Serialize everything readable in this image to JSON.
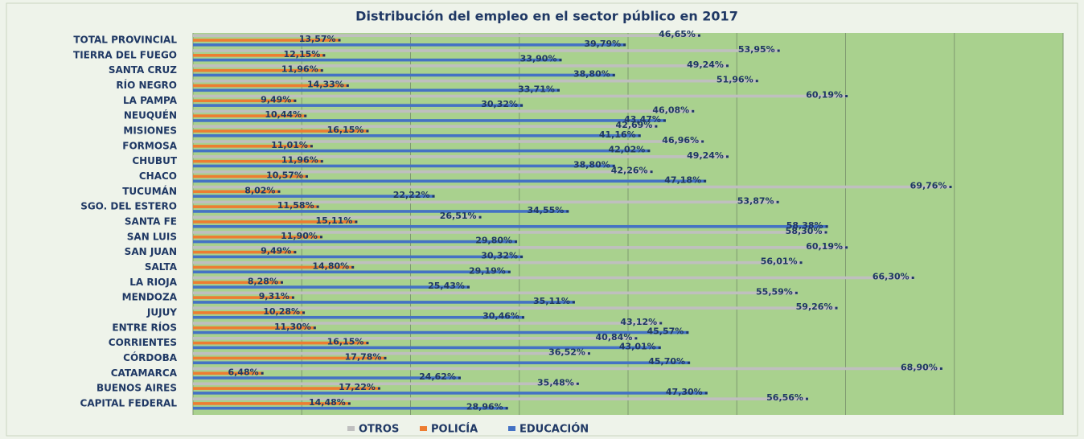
{
  "chart_data": {
    "type": "hbar",
    "title": "Distribución del empleo en el sector público en 2017",
    "categories": [
      "TOTAL PROVINCIAL",
      "TIERRA DEL FUEGO",
      "SANTA CRUZ",
      "RÍO NEGRO",
      "LA PAMPA",
      "NEUQUÉN",
      "MISIONES",
      "FORMOSA",
      "CHUBUT",
      "CHACO",
      "TUCUMÁN",
      "SGO. DEL ESTERO",
      "SANTA FE",
      "SAN LUIS",
      "SAN JUAN",
      "SALTA",
      "LA RIOJA",
      "MENDOZA",
      "JUJUY",
      "ENTRE RÍOS",
      "CORRIENTES",
      "CÓRDOBA",
      "CATAMARCA",
      "BUENOS AIRES",
      "CAPITAL FEDERAL"
    ],
    "series": [
      {
        "name": "OTROS",
        "color": "#bfbfbf",
        "values": [
          46.65,
          53.95,
          49.24,
          51.96,
          60.19,
          46.08,
          42.69,
          46.96,
          49.24,
          42.26,
          69.76,
          53.87,
          26.51,
          58.3,
          60.19,
          56.01,
          66.3,
          55.59,
          59.26,
          43.12,
          40.84,
          36.52,
          68.9,
          35.48,
          56.56
        ],
        "value_labels": [
          "46,65%",
          "53,95%",
          "49,24%",
          "51,96%",
          "60,19%",
          "46,08%",
          "42,69%",
          "46,96%",
          "49,24%",
          "42,26%",
          "69,76%",
          "53,87%",
          "26,51%",
          "58,30%",
          "60,19%",
          "56,01%",
          "66,30%",
          "55,59%",
          "59,26%",
          "43,12%",
          "40,84%",
          "36,52%",
          "68,90%",
          "35,48%",
          "56,56%"
        ]
      },
      {
        "name": "POLICÍA",
        "color": "#ed7d31",
        "values": [
          13.57,
          12.15,
          11.96,
          14.33,
          9.49,
          10.44,
          16.15,
          11.01,
          11.96,
          10.57,
          8.02,
          11.58,
          15.11,
          11.9,
          9.49,
          14.8,
          8.28,
          9.31,
          10.28,
          11.3,
          16.15,
          17.78,
          6.48,
          17.22,
          14.48
        ],
        "value_labels": [
          "13,57%",
          "12,15%",
          "11,96%",
          "14,33%",
          "9,49%",
          "10,44%",
          "16,15%",
          "11,01%",
          "11,96%",
          "10,57%",
          "8,02%",
          "11,58%",
          "15,11%",
          "11,90%",
          "9,49%",
          "14,80%",
          "8,28%",
          "9,31%",
          "10,28%",
          "11,30%",
          "16,15%",
          "17,78%",
          "6,48%",
          "17,22%",
          "14,48%"
        ]
      },
      {
        "name": "EDUCACIÓN",
        "color": "#4472c4",
        "values": [
          39.79,
          33.9,
          38.8,
          33.71,
          30.32,
          43.47,
          41.16,
          42.02,
          38.8,
          47.18,
          22.22,
          34.55,
          58.38,
          29.8,
          30.32,
          29.19,
          25.43,
          35.11,
          30.46,
          45.57,
          43.01,
          45.7,
          24.62,
          47.3,
          28.96
        ],
        "value_labels": [
          "39,79%",
          "33,90%",
          "38,80%",
          "33,71%",
          "30,32%",
          "43,47%",
          "41,16%",
          "42,02%",
          "38,80%",
          "47,18%",
          "22,22%",
          "34,55%",
          "58,38%",
          "29,80%",
          "30,32%",
          "29,19%",
          "25,43%",
          "35,11%",
          "30,46%",
          "45,57%",
          "43,01%",
          "45,70%",
          "24,62%",
          "47,30%",
          "28,96%"
        ]
      }
    ],
    "xlim": [
      0,
      80
    ],
    "xticks": [
      0,
      10,
      20,
      30,
      40,
      50,
      60,
      70,
      80
    ],
    "grid": true,
    "legend": "bottom"
  }
}
